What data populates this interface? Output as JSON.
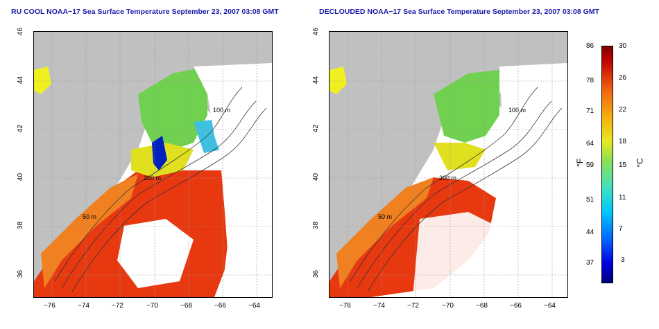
{
  "left_title": "RU COOL NOAA−17 Sea Surface Temperature September 23, 2007 03:08 GMT",
  "right_title": "DECLOUDED NOAA−17 Sea Surface Temperature September 23, 2007 03:08 GMT",
  "lat_ticks": [
    "46",
    "44",
    "42",
    "40",
    "38",
    "36"
  ],
  "lon_ticks": [
    "−76",
    "−74",
    "−72",
    "−70",
    "−68",
    "−66",
    "−64"
  ],
  "contour_labels": {
    "c100": "100 m",
    "c200": "200 m",
    "c50": "50 m"
  },
  "colorbar": {
    "fahrenheit_ticks": [
      "86",
      "78",
      "71",
      "64",
      "59",
      "51",
      "44",
      "37"
    ],
    "celsius_ticks": [
      "30",
      "26",
      "22",
      "18",
      "15",
      "11",
      "7",
      "3"
    ],
    "f_unit": "°F",
    "c_unit": "°C"
  },
  "colors": {
    "title": "#1a1aa8",
    "land": "#c0c0c0",
    "warm": "#e83010",
    "cold": "#0000c8"
  }
}
